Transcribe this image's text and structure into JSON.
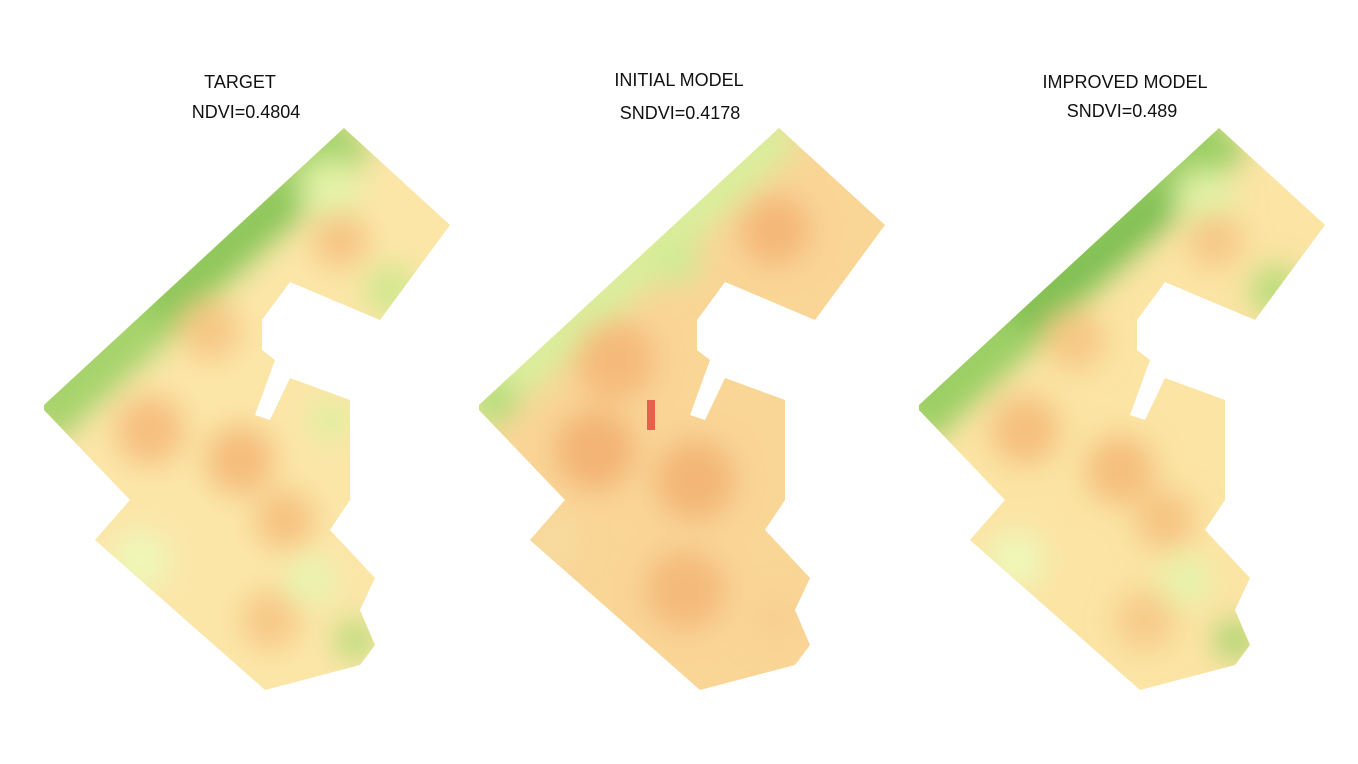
{
  "panels": [
    {
      "title": "TARGET",
      "metric": "NDVI=0.4804"
    },
    {
      "title": "INITIAL MODEL",
      "metric": "SNDVI=0.4178"
    },
    {
      "title": "IMPROVED MODEL",
      "metric": "SNDVI=0.489"
    }
  ]
}
